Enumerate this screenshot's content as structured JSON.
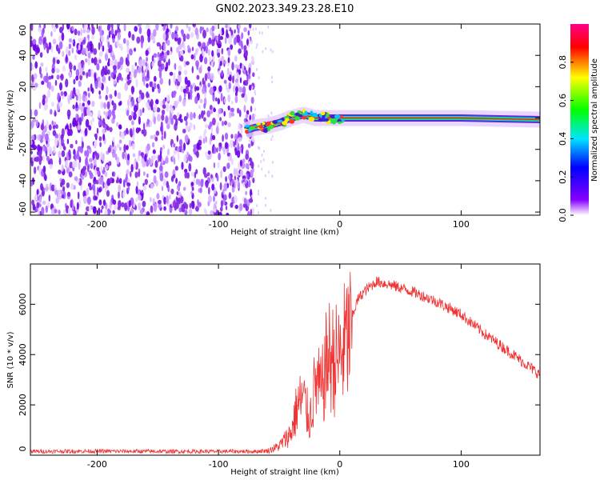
{
  "title": "GN02.2023.349.23.28.E10",
  "chart_data": [
    {
      "type": "heatmap",
      "xlabel": "Height of straight line (km)",
      "ylabel": "Frequency (Hz)",
      "xlim": [
        -255,
        165
      ],
      "ylim": [
        -62,
        60
      ],
      "x_ticks": [
        -200,
        -100,
        0,
        100
      ],
      "y_ticks": [
        -60,
        -40,
        -20,
        0,
        20,
        40,
        60
      ],
      "noise_region_x": [
        -255,
        -75
      ],
      "signal_trace": {
        "x": [
          -78,
          -70,
          -60,
          -50,
          -40,
          -30,
          -20,
          -10,
          0,
          50,
          100,
          165
        ],
        "freq": [
          -8,
          -6,
          -5,
          -3,
          0,
          2,
          0,
          0,
          0,
          0,
          0,
          -1
        ]
      },
      "colorbar": {
        "label": "Normalized spectral amplitude",
        "range": [
          0,
          1
        ],
        "ticks": [
          0.0,
          0.2,
          0.4,
          0.6,
          0.8
        ],
        "colors": [
          "#ffffff",
          "#8800ff",
          "#0000ff",
          "#00e5ff",
          "#00ff00",
          "#ffff00",
          "#ff0000",
          "#ff0088"
        ]
      }
    },
    {
      "type": "line",
      "xlabel": "Height of straight line (km)",
      "ylabel": "SNR (10 * v/v)",
      "xlim": [
        -255,
        165
      ],
      "ylim": [
        0,
        7600
      ],
      "x_ticks": [
        -200,
        -100,
        0,
        100
      ],
      "y_ticks": [
        0,
        2000,
        4000,
        6000
      ],
      "series": [
        {
          "color": "#ee3333",
          "x": [
            -255,
            -200,
            -150,
            -100,
            -70,
            -60,
            -50,
            -45,
            -40,
            -35,
            -30,
            -25,
            -20,
            -15,
            -10,
            -5,
            0,
            5,
            10,
            15,
            20,
            25,
            30,
            35,
            40,
            60,
            80,
            100,
            120,
            140,
            165
          ],
          "values": [
            150,
            160,
            150,
            150,
            150,
            180,
            400,
            700,
            1000,
            2200,
            2500,
            1500,
            3200,
            2800,
            4400,
            4200,
            4300,
            5000,
            5500,
            6200,
            6500,
            6700,
            6900,
            6850,
            6800,
            6500,
            6100,
            5600,
            4800,
            4100,
            3200
          ]
        }
      ]
    }
  ]
}
